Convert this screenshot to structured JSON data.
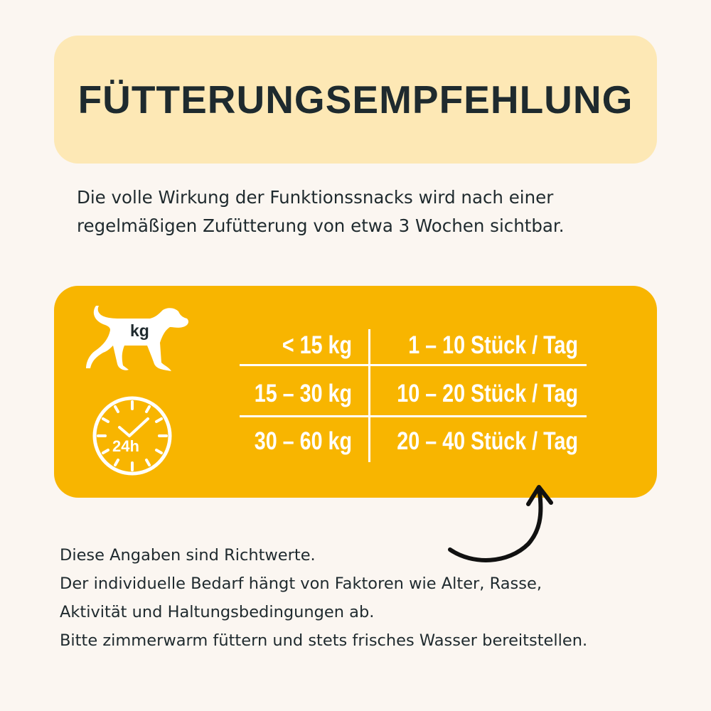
{
  "title": "FÜTTERUNGSEMPFEHLUNG",
  "intro": [
    "Die volle Wirkung der Funktionssnacks wird nach einer",
    "regelmäßigen Zufütterung von etwa 3 Wochen sichtbar."
  ],
  "icons": {
    "dog_label": "kg",
    "clock_label": "24h"
  },
  "table": {
    "rows": [
      {
        "weight": "< 15 kg",
        "amount": "1 – 10 Stück / Tag"
      },
      {
        "weight": "15 – 30 kg",
        "amount": "10 – 20 Stück / Tag"
      },
      {
        "weight": "30 – 60 kg",
        "amount": "20 – 40 Stück / Tag"
      }
    ]
  },
  "notes": [
    "Diese Angaben sind Richtwerte.",
    "Der individuelle Bedarf hängt von Faktoren wie Alter, Rasse,",
    "Aktivität und Haltungsbedingungen ab.",
    "Bitte zimmerwarm füttern und stets frisches Wasser bereitstellen."
  ],
  "colors": {
    "background": "#fbf6f1",
    "title_box": "#fde8b5",
    "card": "#f8b500",
    "text": "#1f2a2e"
  }
}
